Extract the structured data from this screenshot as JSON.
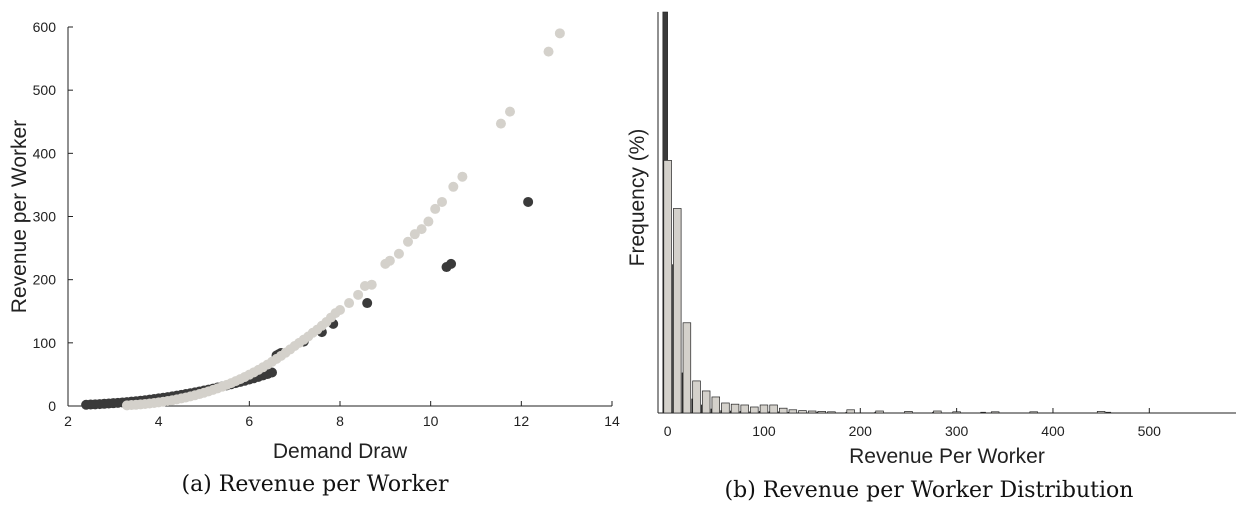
{
  "colors": {
    "dark": "#3a3a3a",
    "light": "#d4d1cb",
    "axis": "#222222"
  },
  "chart_data": [
    {
      "type": "scatter",
      "title": "",
      "caption": "(a) Revenue per Worker",
      "xlabel": "Demand Draw",
      "ylabel": "Revenue per Worker",
      "xlim": [
        2,
        14
      ],
      "ylim": [
        0,
        600
      ],
      "xticks": [
        2,
        4,
        6,
        8,
        10,
        12,
        14
      ],
      "yticks": [
        0,
        100,
        200,
        300,
        400,
        500,
        600
      ],
      "grid": false,
      "series": [
        {
          "color": "#3a3a3a",
          "points": [
            [
              2.4,
              2
            ],
            [
              2.5,
              2.3
            ],
            [
              2.6,
              2.6
            ],
            [
              2.7,
              3
            ],
            [
              2.8,
              3.5
            ],
            [
              2.9,
              4
            ],
            [
              3.0,
              4.5
            ],
            [
              3.1,
              5
            ],
            [
              3.2,
              5.6
            ],
            [
              3.3,
              6.2
            ],
            [
              3.4,
              6.9
            ],
            [
              3.5,
              7.6
            ],
            [
              3.6,
              8.4
            ],
            [
              3.7,
              9.2
            ],
            [
              3.8,
              10.1
            ],
            [
              3.9,
              11
            ],
            [
              4.0,
              12
            ],
            [
              4.1,
              13
            ],
            [
              4.2,
              14.1
            ],
            [
              4.3,
              15.2
            ],
            [
              4.4,
              16.4
            ],
            [
              4.5,
              17.6
            ],
            [
              4.6,
              18.9
            ],
            [
              4.7,
              20.2
            ],
            [
              4.8,
              21.6
            ],
            [
              4.9,
              23
            ],
            [
              5.0,
              24.5
            ],
            [
              5.1,
              26
            ],
            [
              5.2,
              27.6
            ],
            [
              5.3,
              29.2
            ],
            [
              5.4,
              30.9
            ],
            [
              5.5,
              32.6
            ],
            [
              5.6,
              34.4
            ],
            [
              5.7,
              36.2
            ],
            [
              5.8,
              38.1
            ],
            [
              5.9,
              40
            ],
            [
              6.0,
              42
            ],
            [
              6.1,
              44
            ],
            [
              6.2,
              46.2
            ],
            [
              6.3,
              48.4
            ],
            [
              6.4,
              50.6
            ],
            [
              6.5,
              53
            ],
            [
              6.6,
              80
            ],
            [
              6.65,
              82
            ],
            [
              6.7,
              84
            ],
            [
              7.2,
              102
            ],
            [
              7.6,
              117
            ],
            [
              7.85,
              130
            ],
            [
              8.6,
              163
            ],
            [
              10.35,
              220
            ],
            [
              10.45,
              225
            ],
            [
              12.15,
              323
            ]
          ]
        },
        {
          "color": "#d4d1cb",
          "points": [
            [
              3.3,
              1
            ],
            [
              3.4,
              1.5
            ],
            [
              3.5,
              2
            ],
            [
              3.6,
              2.5
            ],
            [
              3.7,
              3.2
            ],
            [
              3.8,
              4
            ],
            [
              3.9,
              4.8
            ],
            [
              4.0,
              5.8
            ],
            [
              4.1,
              6.8
            ],
            [
              4.2,
              8
            ],
            [
              4.3,
              9.2
            ],
            [
              4.4,
              10.5
            ],
            [
              4.5,
              12
            ],
            [
              4.6,
              13.5
            ],
            [
              4.7,
              15.2
            ],
            [
              4.8,
              17
            ],
            [
              4.9,
              18.9
            ],
            [
              5.0,
              21
            ],
            [
              5.1,
              23.2
            ],
            [
              5.2,
              25.5
            ],
            [
              5.3,
              28
            ],
            [
              5.4,
              30.6
            ],
            [
              5.5,
              33.4
            ],
            [
              5.6,
              36.3
            ],
            [
              5.7,
              39.4
            ],
            [
              5.8,
              42.6
            ],
            [
              5.9,
              46
            ],
            [
              6.0,
              49.6
            ],
            [
              6.1,
              53.3
            ],
            [
              6.2,
              57.2
            ],
            [
              6.3,
              61.3
            ],
            [
              6.4,
              65.6
            ],
            [
              6.5,
              70
            ],
            [
              6.6,
              74.6
            ],
            [
              6.7,
              79.4
            ],
            [
              6.8,
              84.4
            ],
            [
              6.9,
              89.6
            ],
            [
              7.0,
              95
            ],
            [
              7.1,
              100
            ],
            [
              7.2,
              105
            ],
            [
              7.3,
              110
            ],
            [
              7.4,
              116
            ],
            [
              7.5,
              121
            ],
            [
              7.6,
              127
            ],
            [
              7.7,
              133
            ],
            [
              7.8,
              140
            ],
            [
              7.9,
              147
            ],
            [
              8.0,
              152
            ],
            [
              8.2,
              163
            ],
            [
              8.4,
              176
            ],
            [
              8.55,
              190
            ],
            [
              8.7,
              192
            ],
            [
              9.0,
              225
            ],
            [
              9.1,
              230
            ],
            [
              9.3,
              241
            ],
            [
              9.5,
              260
            ],
            [
              9.65,
              272
            ],
            [
              9.8,
              280
            ],
            [
              9.95,
              292
            ],
            [
              10.1,
              312
            ],
            [
              10.25,
              323
            ],
            [
              10.5,
              347
            ],
            [
              10.7,
              363
            ],
            [
              11.55,
              447
            ],
            [
              11.75,
              466
            ],
            [
              12.6,
              561
            ],
            [
              12.85,
              590
            ]
          ]
        }
      ]
    },
    {
      "type": "bar",
      "title": "",
      "caption": "(b) Revenue per Worker Distribution",
      "xlabel": "Revenue Per Worker",
      "ylabel": "Frequency (%)",
      "xlim": [
        -10,
        590
      ],
      "ylim": [
        0,
        100
      ],
      "xticks": [
        0,
        100,
        200,
        300,
        400,
        500
      ],
      "grid": false,
      "bin_width": 10,
      "series": [
        {
          "color": "#3a3a3a",
          "bin_centers": [
            0,
            10,
            20,
            30,
            40,
            50,
            60,
            70,
            80,
            90,
            100,
            110,
            120,
            130,
            160,
            190,
            220,
            280,
            330,
            460
          ],
          "values": [
            100,
            37,
            10,
            3.5,
            2,
            1,
            0.6,
            0.5,
            0.4,
            0.3,
            0.4,
            0.3,
            0.3,
            0.2,
            0.2,
            0.2,
            0.2,
            0.2,
            0.2,
            0.2
          ]
        },
        {
          "color": "#d4d1cb",
          "bin_centers": [
            0,
            10,
            20,
            30,
            40,
            50,
            60,
            70,
            80,
            90,
            100,
            110,
            120,
            130,
            140,
            150,
            160,
            170,
            190,
            220,
            250,
            280,
            300,
            340,
            380,
            450
          ],
          "values": [
            63,
            51,
            22.5,
            8,
            5.5,
            4,
            2.5,
            2.2,
            2,
            1.5,
            2,
            2,
            1.2,
            0.8,
            0.6,
            0.5,
            0.4,
            0.3,
            0.8,
            0.5,
            0.4,
            0.5,
            0.3,
            0.3,
            0.3,
            0.4
          ]
        }
      ]
    }
  ]
}
